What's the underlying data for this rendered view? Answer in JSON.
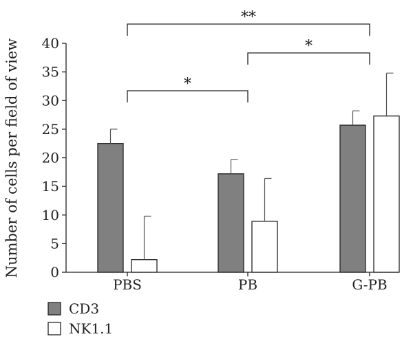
{
  "chart_data": {
    "type": "bar",
    "title": "",
    "xlabel": "",
    "ylabel": "Number of cells per field of view",
    "ylim": [
      0,
      40
    ],
    "yticks": [
      0,
      5,
      10,
      15,
      20,
      25,
      30,
      35,
      40
    ],
    "categories": [
      "PBS",
      "PB",
      "G-PB"
    ],
    "series": [
      {
        "name": "CD3",
        "color": "#808080",
        "values": [
          22.5,
          17.2,
          25.7
        ],
        "errors": [
          2.5,
          2.5,
          2.5
        ]
      },
      {
        "name": "NK1.1",
        "color": "#ffffff",
        "values": [
          2.2,
          8.9,
          27.3
        ],
        "errors": [
          7.6,
          7.5,
          7.5
        ]
      }
    ],
    "significance": [
      {
        "from": "PBS",
        "to": "PB",
        "label": "*"
      },
      {
        "from": "PB",
        "to": "G-PB",
        "label": "*"
      },
      {
        "from": "PBS",
        "to": "G-PB",
        "label": "**"
      }
    ],
    "legend": {
      "placement": "bottom-left"
    }
  }
}
